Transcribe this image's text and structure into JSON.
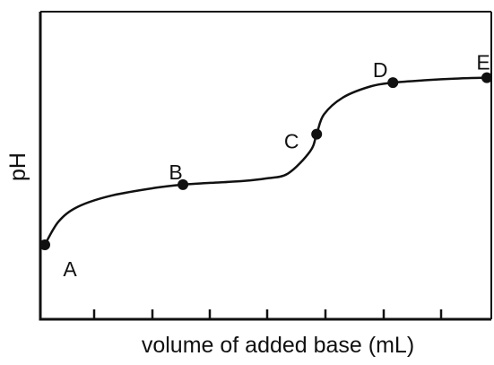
{
  "chart_data": {
    "type": "line",
    "title": "",
    "xlabel": "volume of added base (mL)",
    "ylabel": "pH",
    "xlim": [
      0,
      8
    ],
    "ylim": [
      0,
      10
    ],
    "x_ticks": [
      1,
      2,
      3,
      4,
      5,
      6,
      7
    ],
    "grid": false,
    "legend": "none",
    "series": [
      {
        "x": [
          0,
          0.25,
          0.6,
          1.2,
          2.0,
          2.5,
          3.0,
          3.6,
          4.0,
          4.4,
          4.8,
          4.92,
          5.05,
          5.4,
          5.9,
          6.3,
          6.9,
          7.5,
          8.0
        ],
        "y": [
          2.3,
          3.25,
          3.85,
          4.3,
          4.62,
          4.75,
          4.82,
          4.9,
          5.0,
          5.2,
          6.1,
          6.8,
          7.6,
          8.3,
          8.75,
          8.9,
          9.0,
          9.07,
          9.1
        ],
        "color": "#111111"
      }
    ],
    "points": [
      {
        "label": "A",
        "x": 0,
        "y": 2.3
      },
      {
        "label": "B",
        "x": 2.5,
        "y": 4.75
      },
      {
        "label": "C",
        "x": 4.92,
        "y": 6.8
      },
      {
        "label": "D",
        "x": 6.3,
        "y": 8.9
      },
      {
        "label": "E",
        "x": 8.0,
        "y": 9.1
      }
    ]
  }
}
